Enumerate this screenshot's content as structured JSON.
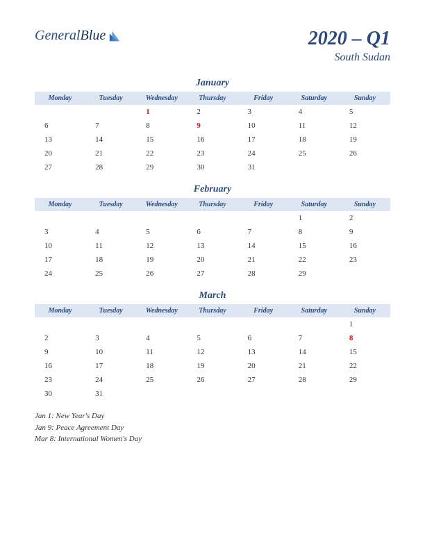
{
  "logo": {
    "word1": "General",
    "word2": "Blue"
  },
  "title": {
    "main": "2020 – Q1",
    "sub": "South Sudan"
  },
  "day_headers": [
    "Monday",
    "Tuesday",
    "Wednesday",
    "Thursday",
    "Friday",
    "Saturday",
    "Sunday"
  ],
  "colors": {
    "accent": "#2b4a7a",
    "header_bg": "#dde6f2",
    "holiday": "#c41e1e",
    "text": "#333333",
    "bg": "#ffffff"
  },
  "months": [
    {
      "name": "January",
      "weeks": [
        [
          {
            "d": ""
          },
          {
            "d": ""
          },
          {
            "d": "1",
            "h": true
          },
          {
            "d": "2"
          },
          {
            "d": "3"
          },
          {
            "d": "4"
          },
          {
            "d": "5"
          }
        ],
        [
          {
            "d": "6"
          },
          {
            "d": "7"
          },
          {
            "d": "8"
          },
          {
            "d": "9",
            "h": true
          },
          {
            "d": "10"
          },
          {
            "d": "11"
          },
          {
            "d": "12"
          }
        ],
        [
          {
            "d": "13"
          },
          {
            "d": "14"
          },
          {
            "d": "15"
          },
          {
            "d": "16"
          },
          {
            "d": "17"
          },
          {
            "d": "18"
          },
          {
            "d": "19"
          }
        ],
        [
          {
            "d": "20"
          },
          {
            "d": "21"
          },
          {
            "d": "22"
          },
          {
            "d": "23"
          },
          {
            "d": "24"
          },
          {
            "d": "25"
          },
          {
            "d": "26"
          }
        ],
        [
          {
            "d": "27"
          },
          {
            "d": "28"
          },
          {
            "d": "29"
          },
          {
            "d": "30"
          },
          {
            "d": "31"
          },
          {
            "d": ""
          },
          {
            "d": ""
          }
        ]
      ]
    },
    {
      "name": "February",
      "weeks": [
        [
          {
            "d": ""
          },
          {
            "d": ""
          },
          {
            "d": ""
          },
          {
            "d": ""
          },
          {
            "d": ""
          },
          {
            "d": "1"
          },
          {
            "d": "2"
          }
        ],
        [
          {
            "d": "3"
          },
          {
            "d": "4"
          },
          {
            "d": "5"
          },
          {
            "d": "6"
          },
          {
            "d": "7"
          },
          {
            "d": "8"
          },
          {
            "d": "9"
          }
        ],
        [
          {
            "d": "10"
          },
          {
            "d": "11"
          },
          {
            "d": "12"
          },
          {
            "d": "13"
          },
          {
            "d": "14"
          },
          {
            "d": "15"
          },
          {
            "d": "16"
          }
        ],
        [
          {
            "d": "17"
          },
          {
            "d": "18"
          },
          {
            "d": "19"
          },
          {
            "d": "20"
          },
          {
            "d": "21"
          },
          {
            "d": "22"
          },
          {
            "d": "23"
          }
        ],
        [
          {
            "d": "24"
          },
          {
            "d": "25"
          },
          {
            "d": "26"
          },
          {
            "d": "27"
          },
          {
            "d": "28"
          },
          {
            "d": "29"
          },
          {
            "d": ""
          }
        ]
      ]
    },
    {
      "name": "March",
      "weeks": [
        [
          {
            "d": ""
          },
          {
            "d": ""
          },
          {
            "d": ""
          },
          {
            "d": ""
          },
          {
            "d": ""
          },
          {
            "d": ""
          },
          {
            "d": "1"
          }
        ],
        [
          {
            "d": "2"
          },
          {
            "d": "3"
          },
          {
            "d": "4"
          },
          {
            "d": "5"
          },
          {
            "d": "6"
          },
          {
            "d": "7"
          },
          {
            "d": "8",
            "h": true
          }
        ],
        [
          {
            "d": "9"
          },
          {
            "d": "10"
          },
          {
            "d": "11"
          },
          {
            "d": "12"
          },
          {
            "d": "13"
          },
          {
            "d": "14"
          },
          {
            "d": "15"
          }
        ],
        [
          {
            "d": "16"
          },
          {
            "d": "17"
          },
          {
            "d": "18"
          },
          {
            "d": "19"
          },
          {
            "d": "20"
          },
          {
            "d": "21"
          },
          {
            "d": "22"
          }
        ],
        [
          {
            "d": "23"
          },
          {
            "d": "24"
          },
          {
            "d": "25"
          },
          {
            "d": "26"
          },
          {
            "d": "27"
          },
          {
            "d": "28"
          },
          {
            "d": "29"
          }
        ],
        [
          {
            "d": "30"
          },
          {
            "d": "31"
          },
          {
            "d": ""
          },
          {
            "d": ""
          },
          {
            "d": ""
          },
          {
            "d": ""
          },
          {
            "d": ""
          }
        ]
      ]
    }
  ],
  "holidays": [
    "Jan 1: New Year's Day",
    "Jan 9: Peace Agreement Day",
    "Mar 8: International Women's Day"
  ]
}
